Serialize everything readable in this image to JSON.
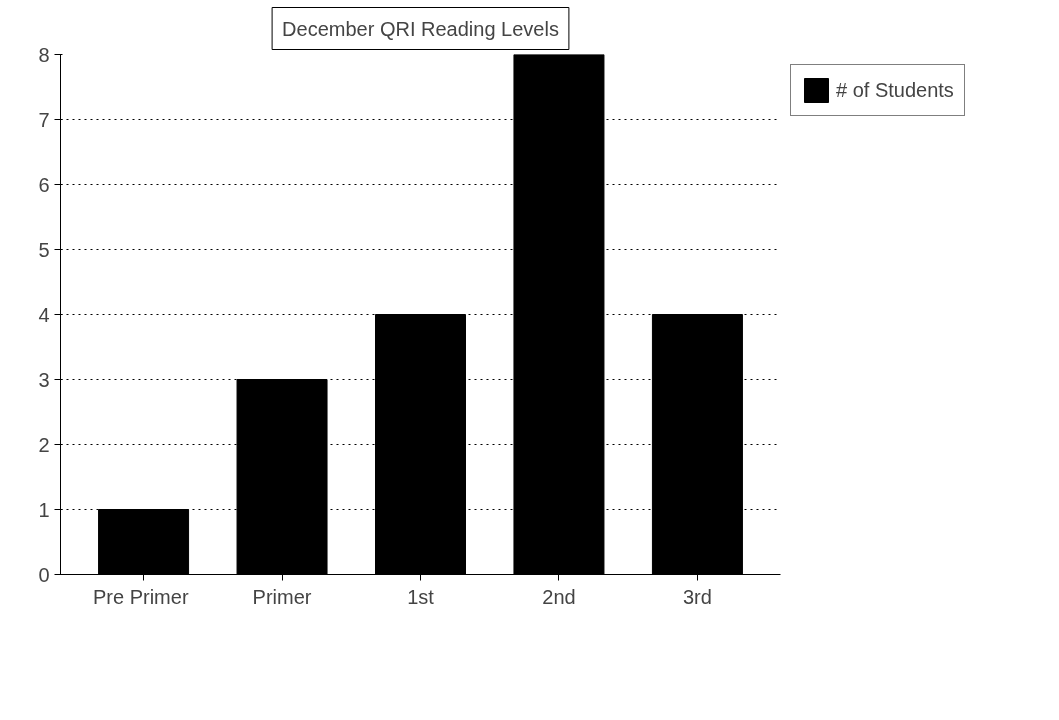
{
  "chart_data": {
    "type": "bar",
    "title": "December QRI Reading Levels",
    "categories": [
      "Pre  Primer",
      "Primer",
      "1st",
      "2nd",
      "3rd"
    ],
    "series": [
      {
        "name": "# of Students",
        "color": "#000000",
        "values": [
          1,
          3,
          4,
          8,
          4
        ]
      }
    ],
    "ylim": [
      0,
      8
    ],
    "yticks": [
      0,
      1,
      2,
      3,
      4,
      5,
      6,
      7,
      8
    ],
    "grid": "y",
    "legend": "top right"
  }
}
